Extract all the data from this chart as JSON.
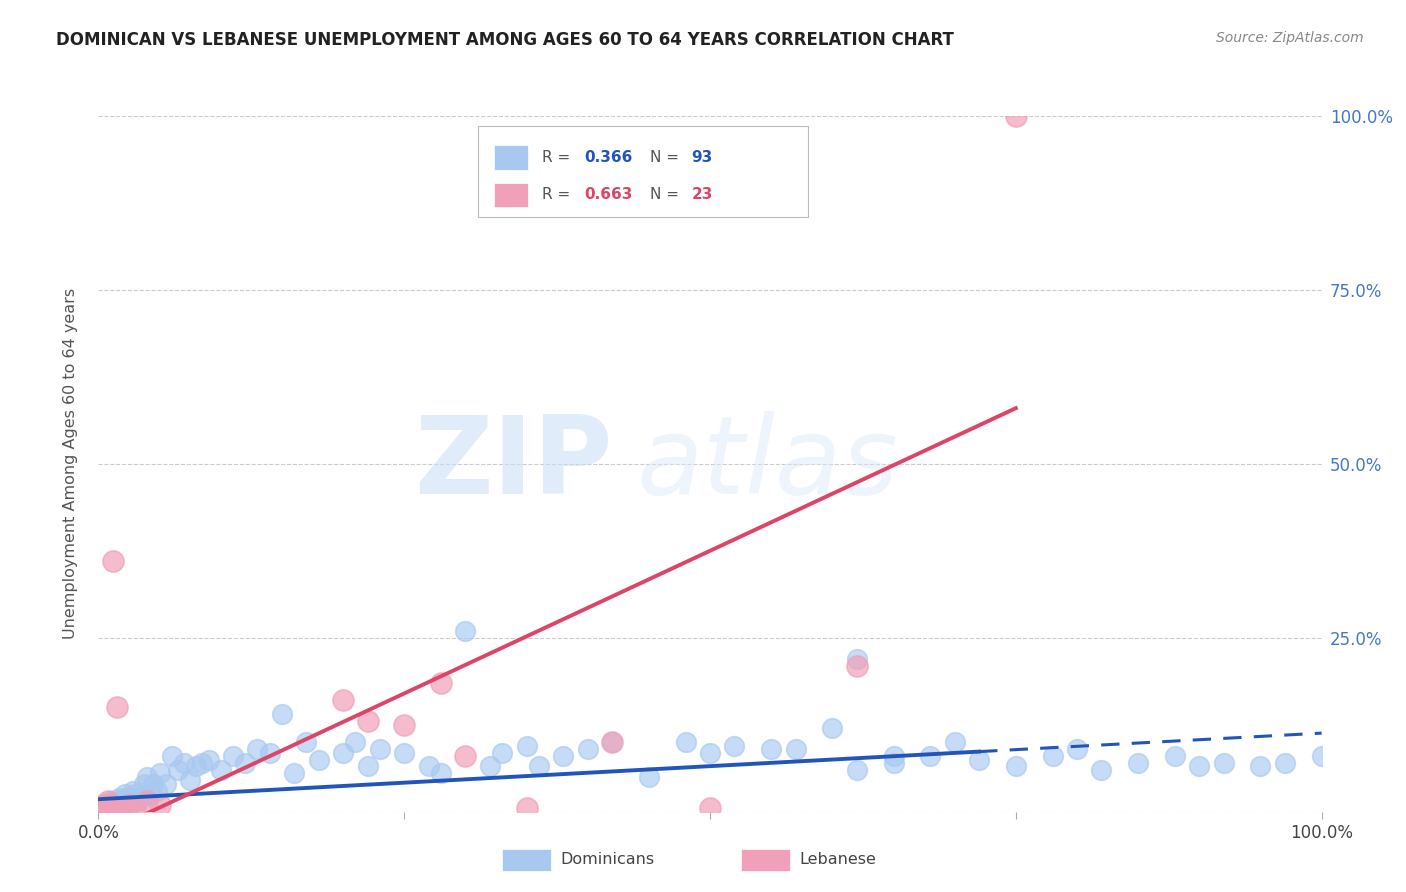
{
  "title": "DOMINICAN VS LEBANESE UNEMPLOYMENT AMONG AGES 60 TO 64 YEARS CORRELATION CHART",
  "source": "Source: ZipAtlas.com",
  "ylabel": "Unemployment Among Ages 60 to 64 years",
  "xlim": [
    0.0,
    1.0
  ],
  "ylim": [
    0.0,
    1.0
  ],
  "dominican_R": 0.366,
  "dominican_N": 93,
  "lebanese_R": 0.663,
  "lebanese_N": 23,
  "dominican_color": "#a8c8f0",
  "lebanese_color": "#f0a0b8",
  "dominican_line_color": "#2255bb",
  "lebanese_line_color": "#dd4466",
  "background_color": "#ffffff",
  "dom_line_intercept": 0.018,
  "dom_line_slope": 0.095,
  "leb_line_intercept": -0.035,
  "leb_line_slope": 0.82,
  "dominican_x": [
    0.002,
    0.003,
    0.004,
    0.005,
    0.005,
    0.006,
    0.007,
    0.008,
    0.008,
    0.009,
    0.01,
    0.01,
    0.011,
    0.012,
    0.013,
    0.014,
    0.015,
    0.016,
    0.017,
    0.018,
    0.019,
    0.02,
    0.021,
    0.022,
    0.025,
    0.027,
    0.028,
    0.03,
    0.032,
    0.035,
    0.037,
    0.04,
    0.042,
    0.045,
    0.048,
    0.05,
    0.055,
    0.06,
    0.065,
    0.07,
    0.075,
    0.08,
    0.085,
    0.09,
    0.1,
    0.11,
    0.12,
    0.13,
    0.14,
    0.15,
    0.16,
    0.17,
    0.18,
    0.2,
    0.21,
    0.22,
    0.23,
    0.25,
    0.27,
    0.28,
    0.3,
    0.32,
    0.33,
    0.35,
    0.36,
    0.38,
    0.4,
    0.42,
    0.45,
    0.48,
    0.5,
    0.52,
    0.55,
    0.57,
    0.6,
    0.62,
    0.65,
    0.68,
    0.7,
    0.72,
    0.75,
    0.78,
    0.8,
    0.82,
    0.85,
    0.88,
    0.9,
    0.92,
    0.95,
    0.97,
    1.0,
    0.62,
    0.65
  ],
  "dominican_y": [
    0.005,
    0.003,
    0.007,
    0.005,
    0.01,
    0.004,
    0.008,
    0.006,
    0.012,
    0.008,
    0.005,
    0.015,
    0.01,
    0.007,
    0.012,
    0.009,
    0.015,
    0.008,
    0.02,
    0.012,
    0.015,
    0.01,
    0.018,
    0.025,
    0.02,
    0.015,
    0.03,
    0.025,
    0.015,
    0.02,
    0.04,
    0.05,
    0.025,
    0.04,
    0.03,
    0.055,
    0.04,
    0.08,
    0.06,
    0.07,
    0.045,
    0.065,
    0.07,
    0.075,
    0.06,
    0.08,
    0.07,
    0.09,
    0.085,
    0.14,
    0.055,
    0.1,
    0.075,
    0.085,
    0.1,
    0.065,
    0.09,
    0.085,
    0.065,
    0.055,
    0.26,
    0.065,
    0.085,
    0.095,
    0.065,
    0.08,
    0.09,
    0.1,
    0.05,
    0.1,
    0.085,
    0.095,
    0.09,
    0.09,
    0.12,
    0.06,
    0.07,
    0.08,
    0.1,
    0.075,
    0.065,
    0.08,
    0.09,
    0.06,
    0.07,
    0.08,
    0.065,
    0.07,
    0.065,
    0.07,
    0.08,
    0.22,
    0.08
  ],
  "lebanese_x": [
    0.002,
    0.004,
    0.006,
    0.008,
    0.01,
    0.012,
    0.015,
    0.018,
    0.02,
    0.025,
    0.03,
    0.04,
    0.05,
    0.2,
    0.22,
    0.25,
    0.28,
    0.3,
    0.35,
    0.42,
    0.5,
    0.62,
    0.75
  ],
  "lebanese_y": [
    0.005,
    0.01,
    0.005,
    0.015,
    0.01,
    0.36,
    0.15,
    0.005,
    0.005,
    0.01,
    0.005,
    0.015,
    0.01,
    0.16,
    0.13,
    0.125,
    0.185,
    0.08,
    0.005,
    0.1,
    0.005,
    0.21,
    1.0
  ]
}
